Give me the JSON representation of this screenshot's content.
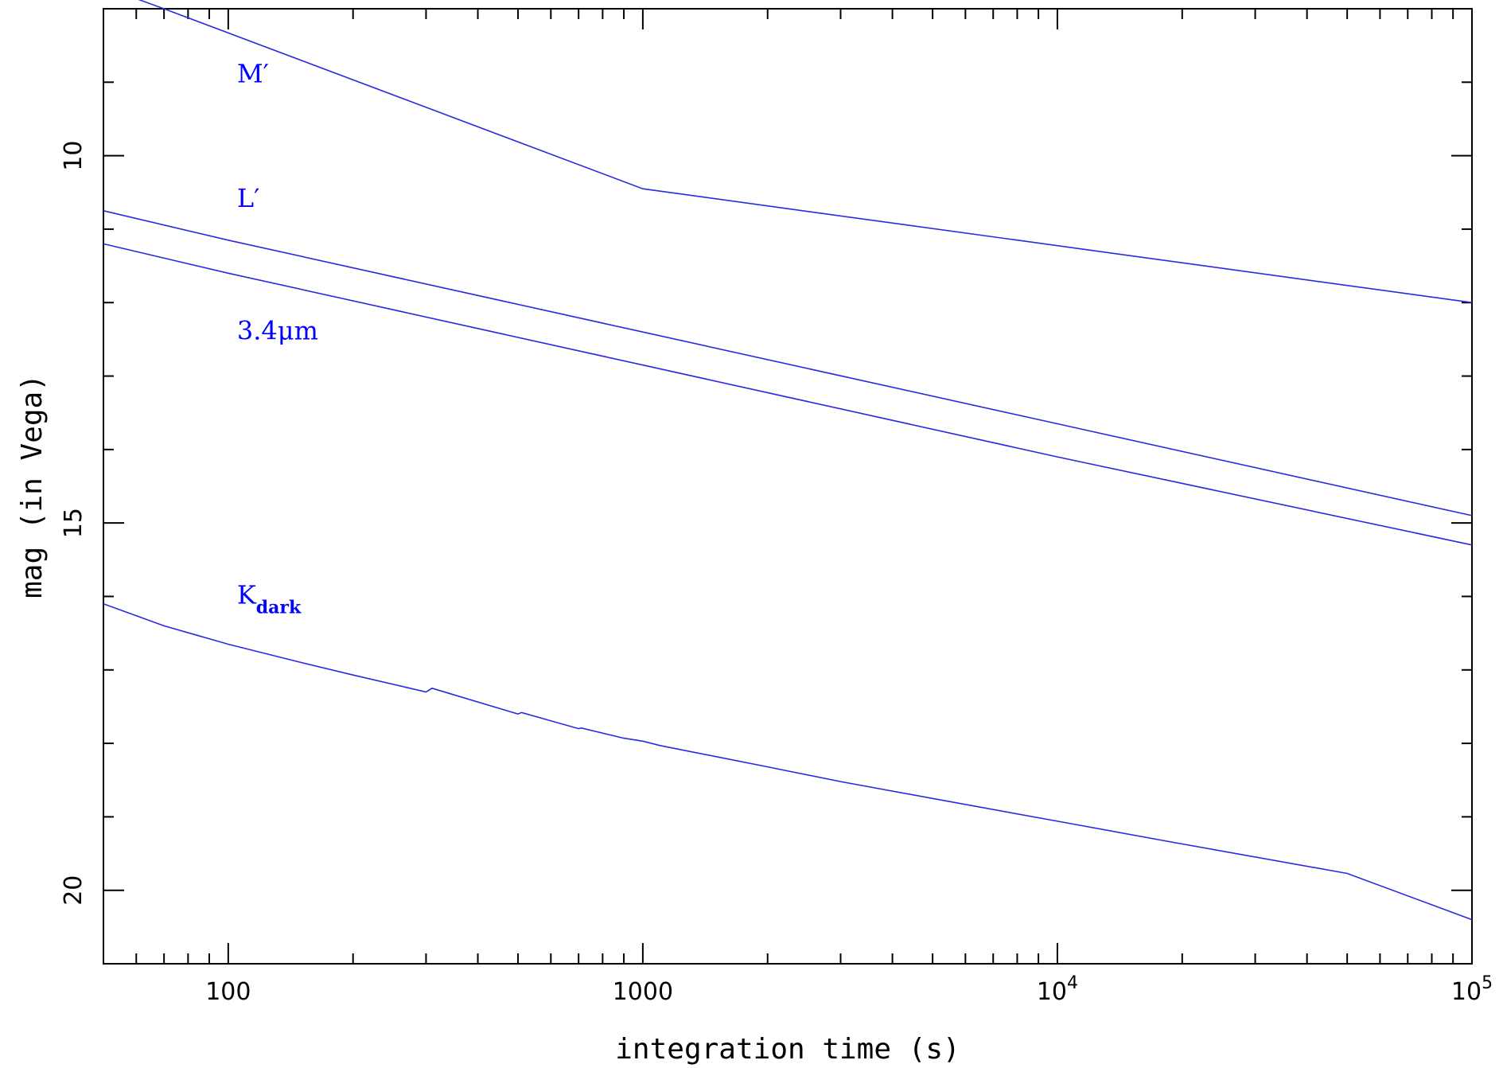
{
  "chart_data": {
    "type": "line",
    "title": "",
    "xlabel": "integration time (s)",
    "ylabel": "mag (in Vega)",
    "xscale": "log",
    "xlim": [
      50,
      100000
    ],
    "ylim": [
      21,
      8
    ],
    "y_inverted": true,
    "grid": false,
    "legend": "inline labels at left",
    "line_color": "#2a2adf",
    "label_color": "#0000ff",
    "x_ticks": [
      {
        "value": 100,
        "base": "100",
        "exp": ""
      },
      {
        "value": 1000,
        "base": "1000",
        "exp": ""
      },
      {
        "value": 10000,
        "base": "10",
        "exp": "4"
      },
      {
        "value": 100000,
        "base": "10",
        "exp": "5"
      }
    ],
    "y_ticks": [
      {
        "value": 10,
        "label": "10"
      },
      {
        "value": 15,
        "label": "15"
      },
      {
        "value": 20,
        "label": "20"
      }
    ],
    "series": [
      {
        "name": "M′",
        "sub": "",
        "label_at": [
          105,
          9.0
        ],
        "x": [
          50,
          70,
          1000,
          100000
        ],
        "y": [
          7.7,
          8.0,
          10.45,
          12.0
        ]
      },
      {
        "name": "L′",
        "sub": "",
        "label_at": [
          105,
          10.7
        ],
        "x": [
          50,
          100,
          1000,
          10000,
          100000
        ],
        "y": [
          10.75,
          11.15,
          12.4,
          13.65,
          14.9
        ]
      },
      {
        "name": "3.4μm",
        "sub": "",
        "label_at": [
          105,
          12.5
        ],
        "x": [
          50,
          100,
          1000,
          10000,
          100000
        ],
        "y": [
          11.2,
          11.6,
          12.85,
          14.1,
          15.3
        ]
      },
      {
        "name": "K",
        "sub": "dark",
        "label_at": [
          105,
          16.1
        ],
        "x": [
          50,
          70,
          100,
          150,
          200,
          300,
          310,
          500,
          510,
          700,
          710,
          900,
          1000,
          1100,
          1500,
          2000,
          3000,
          5000,
          10000,
          20000,
          50000,
          100000
        ],
        "y": [
          16.1,
          16.4,
          16.65,
          16.9,
          17.07,
          17.3,
          17.25,
          17.6,
          17.58,
          17.8,
          17.79,
          17.93,
          17.97,
          18.03,
          18.18,
          18.32,
          18.52,
          18.75,
          19.06,
          19.37,
          19.77,
          20.4
        ]
      }
    ]
  }
}
